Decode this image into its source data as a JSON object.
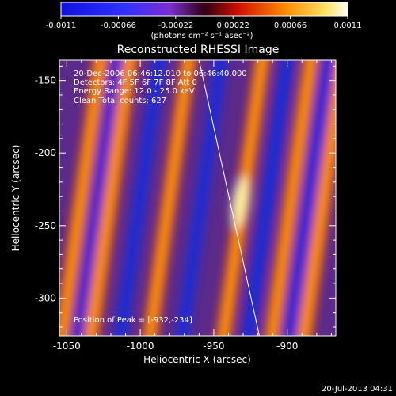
{
  "chart_data": {
    "type": "heatmap",
    "title": "Reconstructed RHESSI Image",
    "xlabel": "Heliocentric X (arcsec)",
    "ylabel": "Heliocentric Y (arcsec)",
    "xlim": [
      -1055,
      -867
    ],
    "ylim": [
      -326,
      -136
    ],
    "x_ticks": [
      -1050,
      -1000,
      -950,
      -900
    ],
    "x_tick_labels": [
      "-1050",
      "-1000",
      "-950",
      "-900"
    ],
    "y_ticks": [
      -150,
      -200,
      -250,
      -300
    ],
    "y_tick_labels": [
      "-150",
      "-200",
      "-250",
      "-300"
    ],
    "colorbar": {
      "range": [
        -0.0011,
        0.0011
      ],
      "tick_labels": [
        "-0.0011",
        "-0.00066",
        "-0.00022",
        "0.00022",
        "0.00066",
        "0.0011"
      ],
      "label": "(photons cm⁻² s⁻¹ asec⁻²)"
    },
    "annotations": {
      "time": "20-Dec-2006 06:46:12.010 to 06:46:40.000",
      "detectors": "Detectors: 4F 5F 6F 7F 8F  Att 0",
      "energy": "Energy Range: 12.0 - 25.0 keV",
      "method": "Clean    Total counts: 627",
      "peak": "Position of Peak = [-932,-234]"
    },
    "peak": [
      -932,
      -234
    ],
    "limb_line": [
      [
        -960,
        -136
      ],
      [
        -919,
        -326
      ]
    ],
    "stripes": {
      "angle_deg": 8,
      "bright_x_at_y_minus230": [
        -1040,
        -1020,
        -980,
        -930,
        -897,
        -875
      ],
      "dark_x_at_y_minus230": [
        -1028,
        -1000,
        -958,
        -913,
        -885
      ]
    }
  },
  "footer": {
    "timestamp": "20-Jul-2013 04:31"
  }
}
